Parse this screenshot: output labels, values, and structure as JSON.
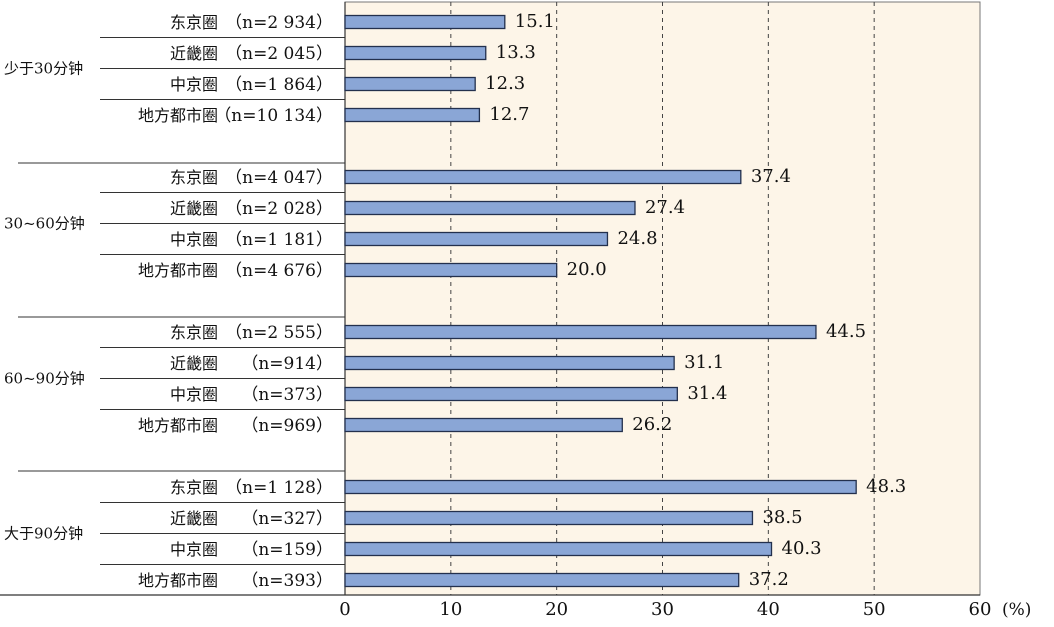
{
  "chart_data": {
    "type": "bar",
    "orientation": "horizontal",
    "x_unit": "(%)",
    "xlim": [
      0,
      60
    ],
    "x_ticks": [
      "0",
      "10",
      "20",
      "30",
      "40",
      "50",
      "60"
    ],
    "gridlines": "vertical dashed",
    "colors": {
      "bar_fill": "#8aa6d6",
      "bar_stroke": "#23304d",
      "plot_background": "#fdf5e8"
    },
    "groups": [
      {
        "label": "少于30分钟",
        "bars": [
          {
            "region": "东京圈",
            "n": "（n=2 934）",
            "value": 15.1,
            "value_label": "15.1"
          },
          {
            "region": "近畿圈",
            "n": "（n=2 045）",
            "value": 13.3,
            "value_label": "13.3"
          },
          {
            "region": "中京圈",
            "n": "（n=1 864）",
            "value": 12.3,
            "value_label": "12.3"
          },
          {
            "region": "地方都市圈",
            "n": "（n=10 134）",
            "value": 12.7,
            "value_label": "12.7"
          }
        ]
      },
      {
        "label": "30~60分钟",
        "bars": [
          {
            "region": "东京圈",
            "n": "（n=4 047）",
            "value": 37.4,
            "value_label": "37.4"
          },
          {
            "region": "近畿圈",
            "n": "（n=2 028）",
            "value": 27.4,
            "value_label": "27.4"
          },
          {
            "region": "中京圈",
            "n": "（n=1 181）",
            "value": 24.8,
            "value_label": "24.8"
          },
          {
            "region": "地方都市圈",
            "n": "（n=4 676）",
            "value": 20.0,
            "value_label": "20.0"
          }
        ]
      },
      {
        "label": "60~90分钟",
        "bars": [
          {
            "region": "东京圈",
            "n": "（n=2 555）",
            "value": 44.5,
            "value_label": "44.5"
          },
          {
            "region": "近畿圈",
            "n": "（n=914）",
            "value": 31.1,
            "value_label": "31.1"
          },
          {
            "region": "中京圈",
            "n": "（n=373）",
            "value": 31.4,
            "value_label": "31.4"
          },
          {
            "region": "地方都市圈",
            "n": "（n=969）",
            "value": 26.2,
            "value_label": "26.2"
          }
        ]
      },
      {
        "label": "大于90分钟",
        "bars": [
          {
            "region": "东京圈",
            "n": "（n=1 128）",
            "value": 48.3,
            "value_label": "48.3"
          },
          {
            "region": "近畿圈",
            "n": "（n=327）",
            "value": 38.5,
            "value_label": "38.5"
          },
          {
            "region": "中京圈",
            "n": "（n=159）",
            "value": 40.3,
            "value_label": "40.3"
          },
          {
            "region": "地方都市圈",
            "n": "（n=393）",
            "value": 37.2,
            "value_label": "37.2"
          }
        ]
      }
    ]
  }
}
